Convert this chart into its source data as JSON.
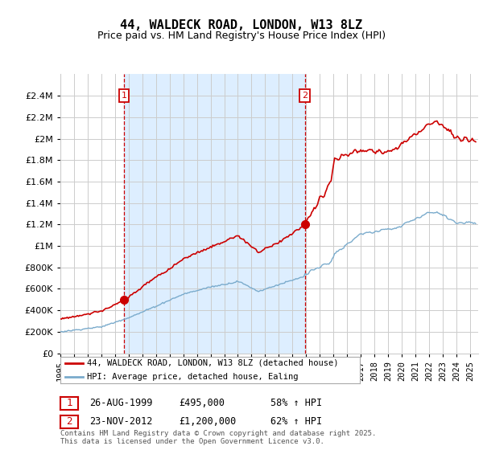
{
  "title": "44, WALDECK ROAD, LONDON, W13 8LZ",
  "subtitle": "Price paid vs. HM Land Registry's House Price Index (HPI)",
  "red_label": "44, WALDECK ROAD, LONDON, W13 8LZ (detached house)",
  "blue_label": "HPI: Average price, detached house, Ealing",
  "annotation1_date": "26-AUG-1999",
  "annotation1_price": "£495,000",
  "annotation1_hpi": "58% ↑ HPI",
  "annotation1_year": 1999.65,
  "annotation2_date": "23-NOV-2012",
  "annotation2_price": "£1,200,000",
  "annotation2_hpi": "62% ↑ HPI",
  "annotation2_year": 2012.9,
  "ylim_min": 0,
  "ylim_max": 2600000,
  "red_color": "#cc0000",
  "blue_color": "#7aabcc",
  "shade_color": "#ddeeff",
  "grid_color": "#cccccc",
  "background_color": "#ffffff",
  "footnote": "Contains HM Land Registry data © Crown copyright and database right 2025.\nThis data is licensed under the Open Government Licence v3.0."
}
